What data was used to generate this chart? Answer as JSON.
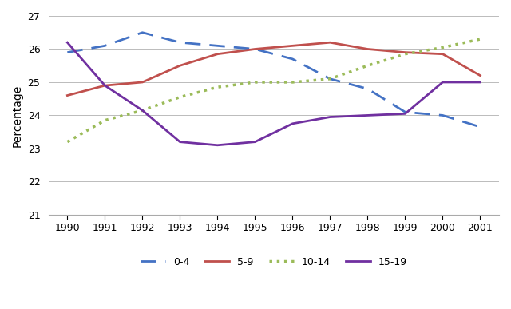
{
  "years": [
    1990,
    1991,
    1992,
    1993,
    1994,
    1995,
    1996,
    1997,
    1998,
    1999,
    2000,
    2001
  ],
  "age_0_4": [
    25.9,
    26.1,
    26.5,
    26.2,
    26.1,
    26.0,
    25.7,
    25.1,
    24.8,
    24.1,
    24.0,
    23.65
  ],
  "age_5_9": [
    24.6,
    24.9,
    25.0,
    25.5,
    25.85,
    26.0,
    26.1,
    26.2,
    26.0,
    25.9,
    25.85,
    25.2
  ],
  "age_10_14": [
    23.2,
    23.85,
    24.15,
    24.55,
    24.85,
    25.0,
    25.0,
    25.1,
    25.5,
    25.85,
    26.05,
    26.3
  ],
  "age_15_19": [
    26.2,
    24.9,
    24.15,
    23.2,
    23.1,
    23.2,
    23.75,
    23.95,
    24.0,
    24.05,
    25.0,
    25.0
  ],
  "ylabel": "Percentage",
  "ylim": [
    21,
    27
  ],
  "yticks": [
    21,
    22,
    23,
    24,
    25,
    26,
    27
  ],
  "color_0_4": "#4472C4",
  "color_5_9": "#C0504D",
  "color_10_14": "#9BBB59",
  "color_15_19": "#7030A0",
  "legend_labels": [
    "0-4",
    "5-9",
    "10-14",
    "15-19"
  ],
  "background_color": "#ffffff"
}
